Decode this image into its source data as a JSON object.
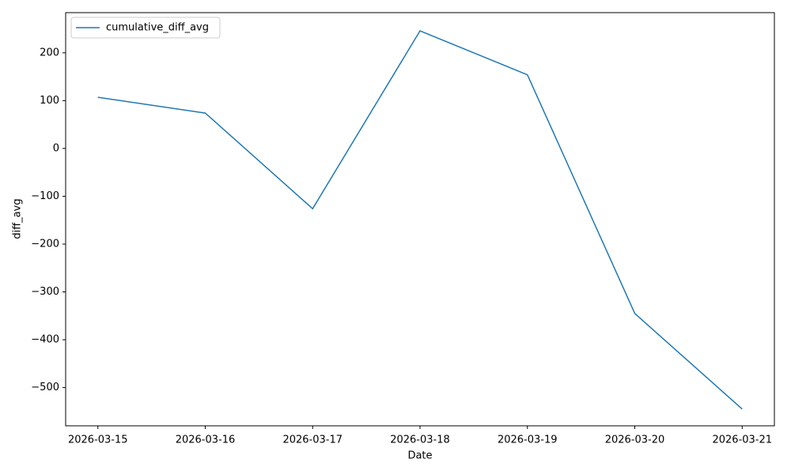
{
  "chart_data": {
    "type": "line",
    "x": [
      "2026-03-15",
      "2026-03-16",
      "2026-03-17",
      "2026-03-18",
      "2026-03-19",
      "2026-03-20",
      "2026-03-21"
    ],
    "series": [
      {
        "name": "cumulative_diff_avg",
        "color": "#1f77b4",
        "values": [
          107,
          74,
          -126,
          246,
          154,
          -345,
          -545
        ]
      }
    ],
    "xlabel": "Date",
    "ylabel": "diff_avg",
    "ylim": [
      -580,
      284
    ],
    "yticks": [
      {
        "value": -500,
        "label": "−500"
      },
      {
        "value": -400,
        "label": "−400"
      },
      {
        "value": -300,
        "label": "−300"
      },
      {
        "value": -200,
        "label": "−200"
      },
      {
        "value": -100,
        "label": "−100"
      },
      0,
      100,
      200
    ],
    "grid": false,
    "legend": "upper left"
  }
}
